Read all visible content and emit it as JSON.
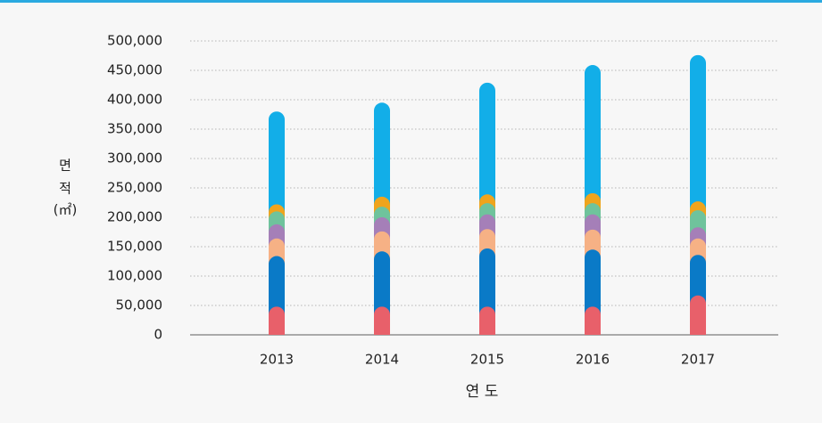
{
  "chart_data": {
    "type": "bar",
    "stacked": true,
    "ylabel": [
      "면",
      "적",
      "(㎡)"
    ],
    "xlabel": "연 도",
    "categories": [
      "2013",
      "2014",
      "2015",
      "2016",
      "2017"
    ],
    "series": [
      {
        "color": "#e8606a",
        "values": [
          48000,
          48000,
          48000,
          48000,
          67000
        ]
      },
      {
        "color": "#0a7ac7",
        "values": [
          86000,
          94000,
          99000,
          97000,
          69000
        ]
      },
      {
        "color": "#f6b185",
        "values": [
          30000,
          34000,
          33000,
          34000,
          28000
        ]
      },
      {
        "color": "#a57fb8",
        "values": [
          24000,
          24000,
          25000,
          26000,
          19000
        ]
      },
      {
        "color": "#6fc39c",
        "values": [
          22000,
          18000,
          19000,
          19000,
          29000
        ]
      },
      {
        "color": "#f0a41c",
        "values": [
          12000,
          17000,
          15000,
          17000,
          15000
        ]
      },
      {
        "color": "#12aee8",
        "values": [
          158000,
          160000,
          190000,
          218000,
          249000
        ]
      }
    ],
    "ylim": [
      0,
      500000
    ],
    "yticks": [
      0,
      {
        "value": 50000,
        "label": "50,000"
      },
      {
        "value": 100000,
        "label": "100,000"
      },
      {
        "value": 150000,
        "label": "150,000"
      },
      {
        "value": 200000,
        "label": "200,000"
      },
      {
        "value": 250000,
        "label": "250,000"
      },
      {
        "value": 300000,
        "label": "300,000"
      },
      {
        "value": 350000,
        "label": "350,000"
      },
      {
        "value": 400000,
        "label": "400,000"
      },
      {
        "value": 450000,
        "label": "450,000"
      },
      {
        "value": 500000,
        "label": "500,000"
      }
    ],
    "grid": true
  }
}
